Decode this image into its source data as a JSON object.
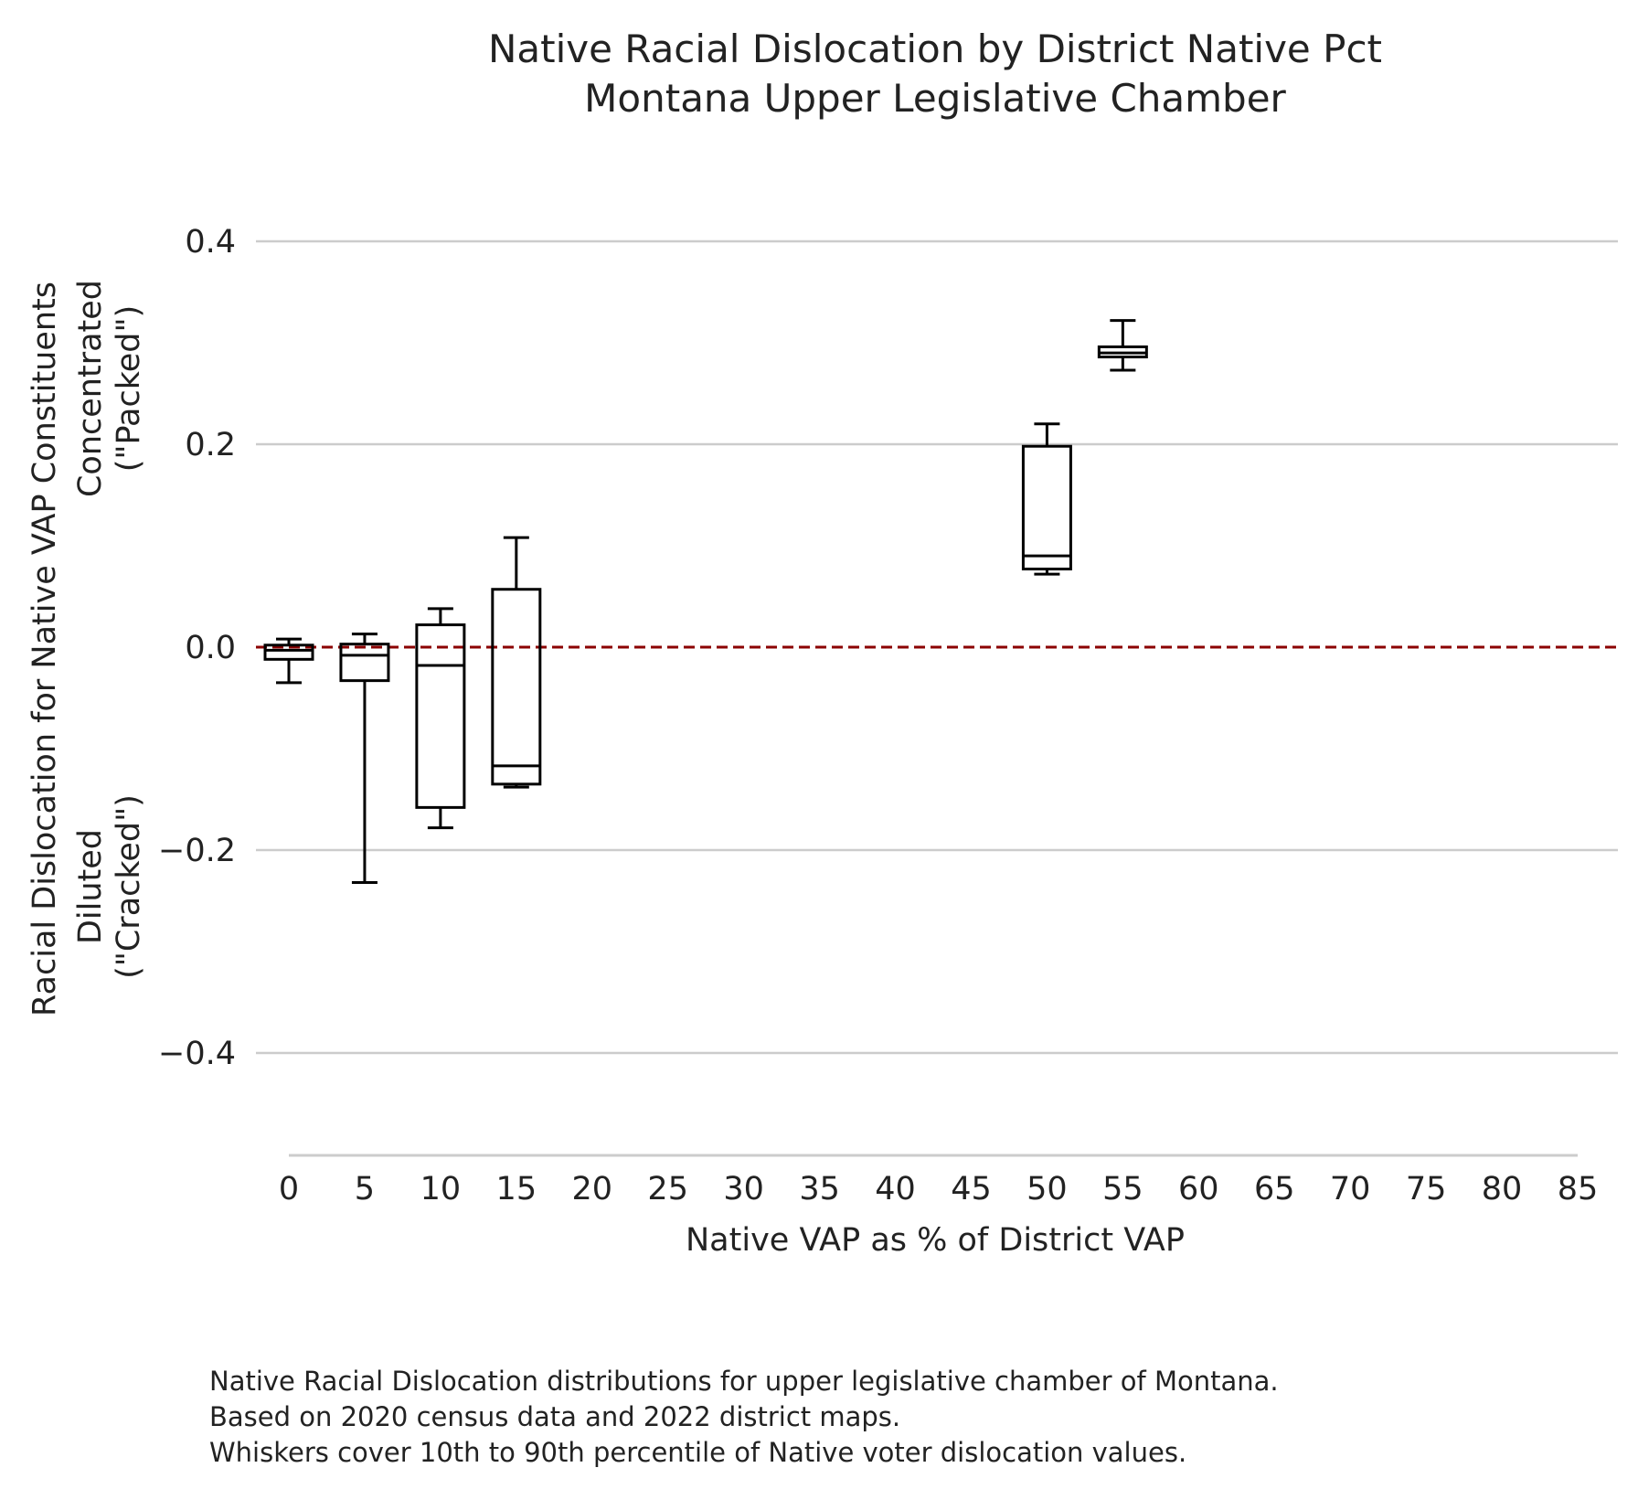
{
  "chart_data": {
    "type": "box",
    "title": [
      "Native Racial Dislocation by District Native Pct",
      "Montana Upper Legislative Chamber"
    ],
    "xlabel": "Native VAP as % of District VAP",
    "ylabel": [
      "Racial Dislocation for Native VAP Constituents",
      "Diluted\n(\"Cracked\")",
      "Concentrated\n(\"Packed\")"
    ],
    "caption": [
      "Native Racial Dislocation distributions for upper legislative chamber of Montana.",
      "Based on 2020 census data and 2022 district maps.",
      "Whiskers cover 10th to 90th percentile of Native voter dislocation values."
    ],
    "xlim": [
      0,
      85
    ],
    "x_ticks": [
      "0",
      "5",
      "10",
      "15",
      "20",
      "25",
      "30",
      "35",
      "40",
      "45",
      "50",
      "55",
      "60",
      "65",
      "70",
      "75",
      "80",
      "85"
    ],
    "ylim": [
      -0.5,
      0.4
    ],
    "y_ticks": [
      "0.4",
      "0.2",
      "0.0",
      "−0.2",
      "−0.4"
    ],
    "y_tick_values": [
      0.4,
      0.2,
      0.0,
      -0.2,
      -0.4
    ],
    "grid": "horizontal",
    "reference_line": {
      "y": 0.0,
      "style": "dashed",
      "color": "#8b0000"
    },
    "boxes": [
      {
        "x": 0,
        "whislo": -0.035,
        "q1": -0.012,
        "med": -0.003,
        "q3": 0.002,
        "whishi": 0.008
      },
      {
        "x": 5,
        "whislo": -0.232,
        "q1": -0.033,
        "med": -0.008,
        "q3": 0.003,
        "whishi": 0.013
      },
      {
        "x": 10,
        "whislo": -0.178,
        "q1": -0.158,
        "med": -0.018,
        "q3": 0.022,
        "whishi": 0.038
      },
      {
        "x": 15,
        "whislo": -0.138,
        "q1": -0.135,
        "med": -0.117,
        "q3": 0.057,
        "whishi": 0.108
      },
      {
        "x": 50,
        "whislo": 0.072,
        "q1": 0.077,
        "med": 0.09,
        "q3": 0.198,
        "whishi": 0.22
      },
      {
        "x": 55,
        "whislo": 0.273,
        "q1": 0.286,
        "med": 0.29,
        "q3": 0.296,
        "whishi": 0.322
      }
    ],
    "colors": {
      "box": "#000000",
      "grid": "#cccccc",
      "reference": "#8b0000",
      "text": "#222222"
    }
  }
}
